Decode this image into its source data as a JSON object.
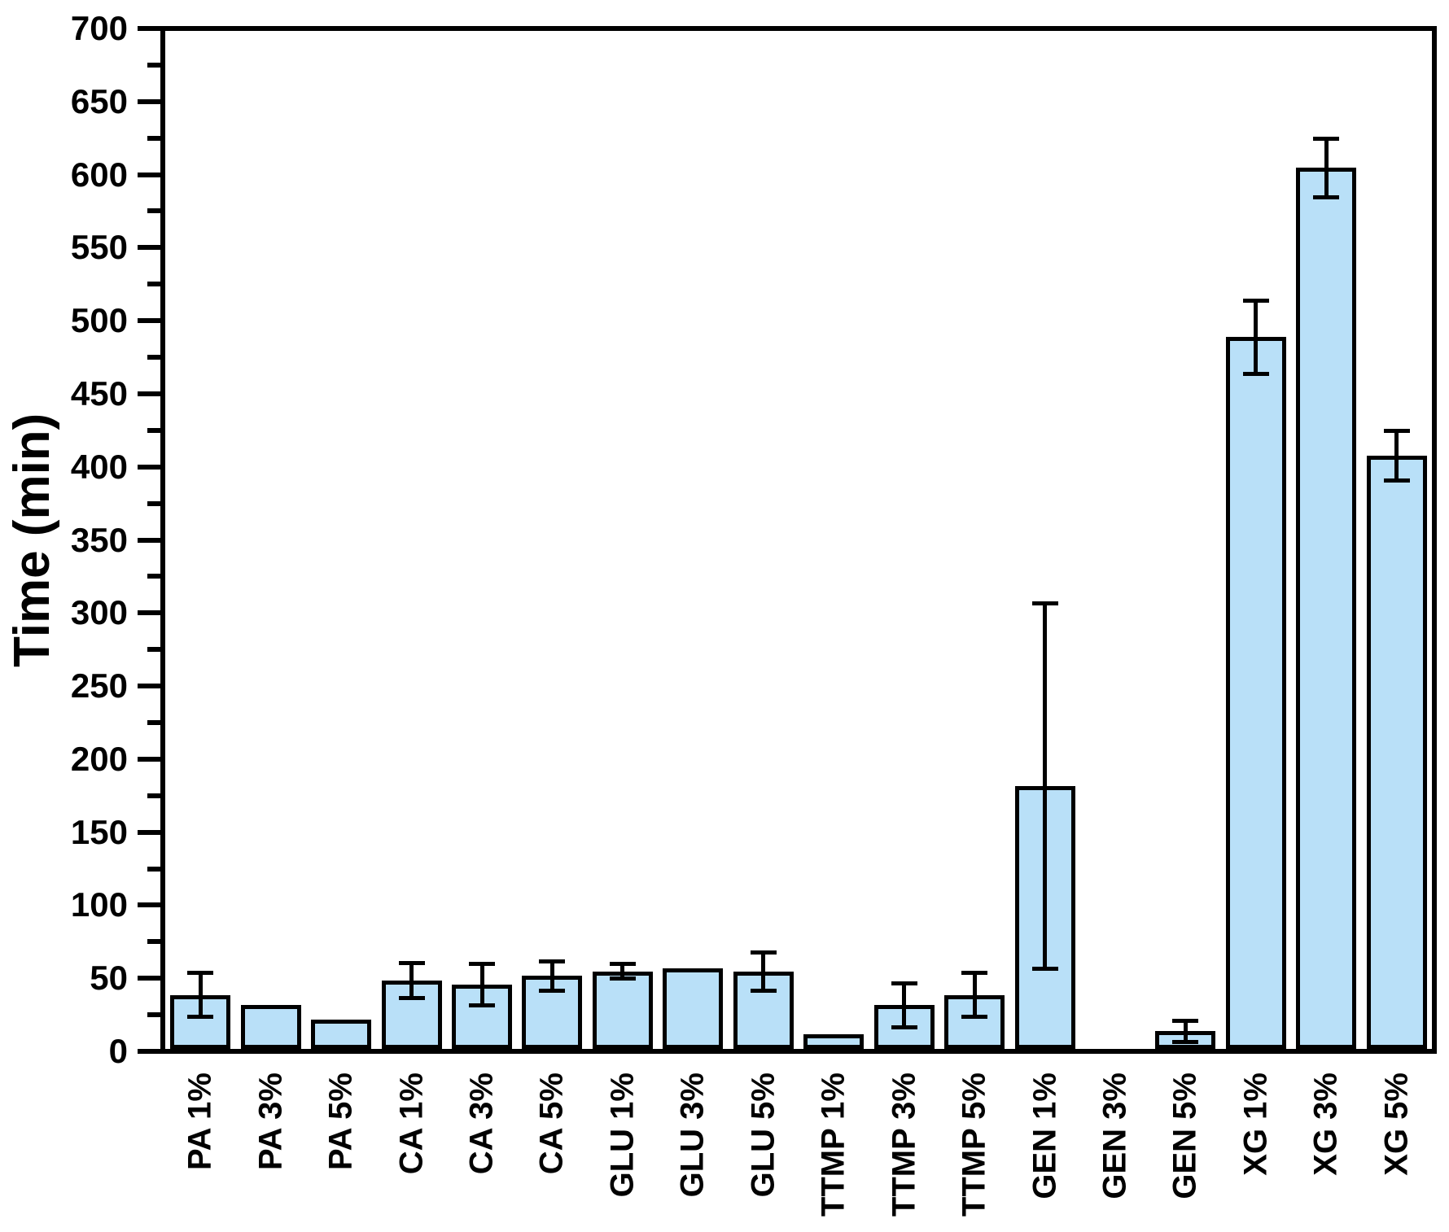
{
  "chart_data": {
    "type": "bar",
    "title": "",
    "ylabel": "Time (min)",
    "xlabel": "",
    "ylim": [
      0,
      700
    ],
    "ytick_major_step": 50,
    "ytick_minor_step": 25,
    "ytick_labels": [
      "0",
      "50",
      "100",
      "150",
      "200",
      "250",
      "300",
      "350",
      "400",
      "450",
      "500",
      "550",
      "600",
      "650",
      "700"
    ],
    "grid": false,
    "legend": "none",
    "bar_fill_color": "#B9E0F8",
    "bar_stroke_color": "#000000",
    "error_bar_color": "#000000",
    "categories": [
      "PA 1%",
      "PA 3%",
      "PA 5%",
      "CA 1%",
      "CA 3%",
      "CA 5%",
      "GLU 1%",
      "GLU 3%",
      "GLU 5%",
      "TTMP 1%",
      "TTMP 3%",
      "TTMP 5%",
      "GEN 1%",
      "GEN 3%",
      "GEN 5%",
      "XG 1%",
      "XG 3%",
      "XG 5%"
    ],
    "values": [
      37,
      30,
      20,
      47,
      44,
      50,
      53,
      55,
      53,
      10,
      30,
      37,
      180,
      0,
      12,
      487,
      603,
      406
    ],
    "error_plus": [
      15,
      0,
      0,
      12,
      14,
      10,
      5,
      0,
      13,
      0,
      15,
      15,
      125,
      0,
      7,
      25,
      20,
      17
    ],
    "error_minus": [
      15,
      0,
      0,
      12,
      14,
      10,
      5,
      0,
      13,
      0,
      15,
      15,
      125,
      0,
      7,
      25,
      20,
      17
    ]
  }
}
